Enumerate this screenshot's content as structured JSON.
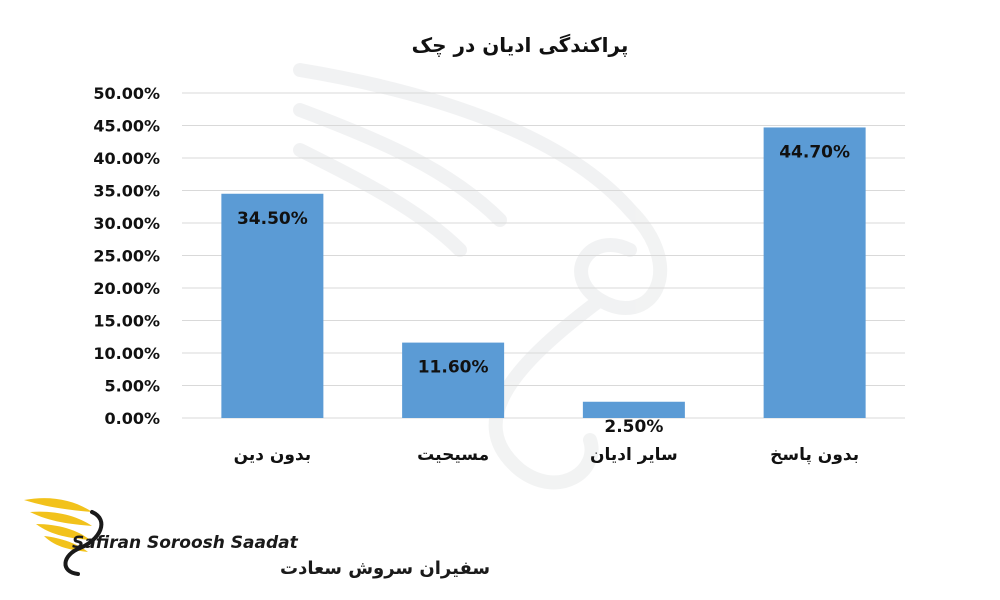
{
  "chart_data": {
    "type": "bar",
    "title": "پراکندگی ادیان در چک",
    "categories": [
      "بدون دین",
      "مسیحیت",
      "سایر ادیان",
      "بدون پاسخ"
    ],
    "values": [
      34.5,
      11.6,
      2.5,
      44.7
    ],
    "value_labels": [
      "34.50%",
      "11.60%",
      "2.50%",
      "44.70%"
    ],
    "ylim": [
      0,
      50
    ],
    "yticks": [
      "0.00%",
      "5.00%",
      "10.00%",
      "15.00%",
      "20.00%",
      "25.00%",
      "30.00%",
      "35.00%",
      "40.00%",
      "45.00%",
      "50.00%"
    ],
    "grid": true,
    "legend": "none",
    "bar_color": "#5b9bd5"
  },
  "branding": {
    "name_en": "Safiran Soroosh Saadat",
    "name_fa": "سفیران سروش سعادت"
  }
}
